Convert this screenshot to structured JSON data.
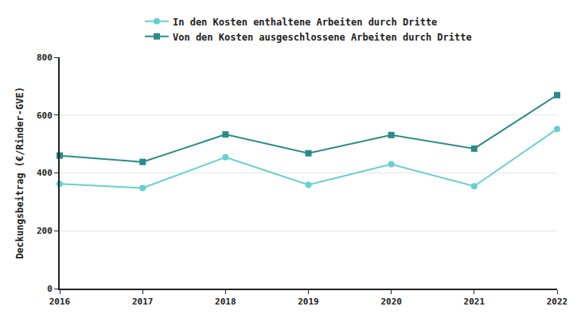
{
  "chart_data": {
    "type": "line",
    "y_label": "Deckungsbeitrag (€/Rinder-GVE)",
    "x": [
      2016,
      2017,
      2018,
      2019,
      2020,
      2021,
      2022
    ],
    "series": [
      {
        "name": "In den Kosten enthaltene Arbeiten durch Dritte",
        "color": "#66cfcf",
        "marker": "circle",
        "values": [
          362,
          348,
          454,
          359,
          430,
          354,
          552
        ]
      },
      {
        "name": "Von den Kosten ausgeschlossene Arbeiten durch Dritte",
        "color": "#2a8b8b",
        "marker": "square",
        "values": [
          460,
          438,
          533,
          468,
          531,
          484,
          669
        ]
      }
    ],
    "xlim": [
      2016,
      2022
    ],
    "xticks": [
      2016,
      2017,
      2018,
      2019,
      2020,
      2021,
      2022
    ],
    "ylim": [
      0,
      800
    ],
    "yticks": [
      0,
      200,
      400,
      600,
      800
    ],
    "grid": true,
    "legend": "top"
  }
}
